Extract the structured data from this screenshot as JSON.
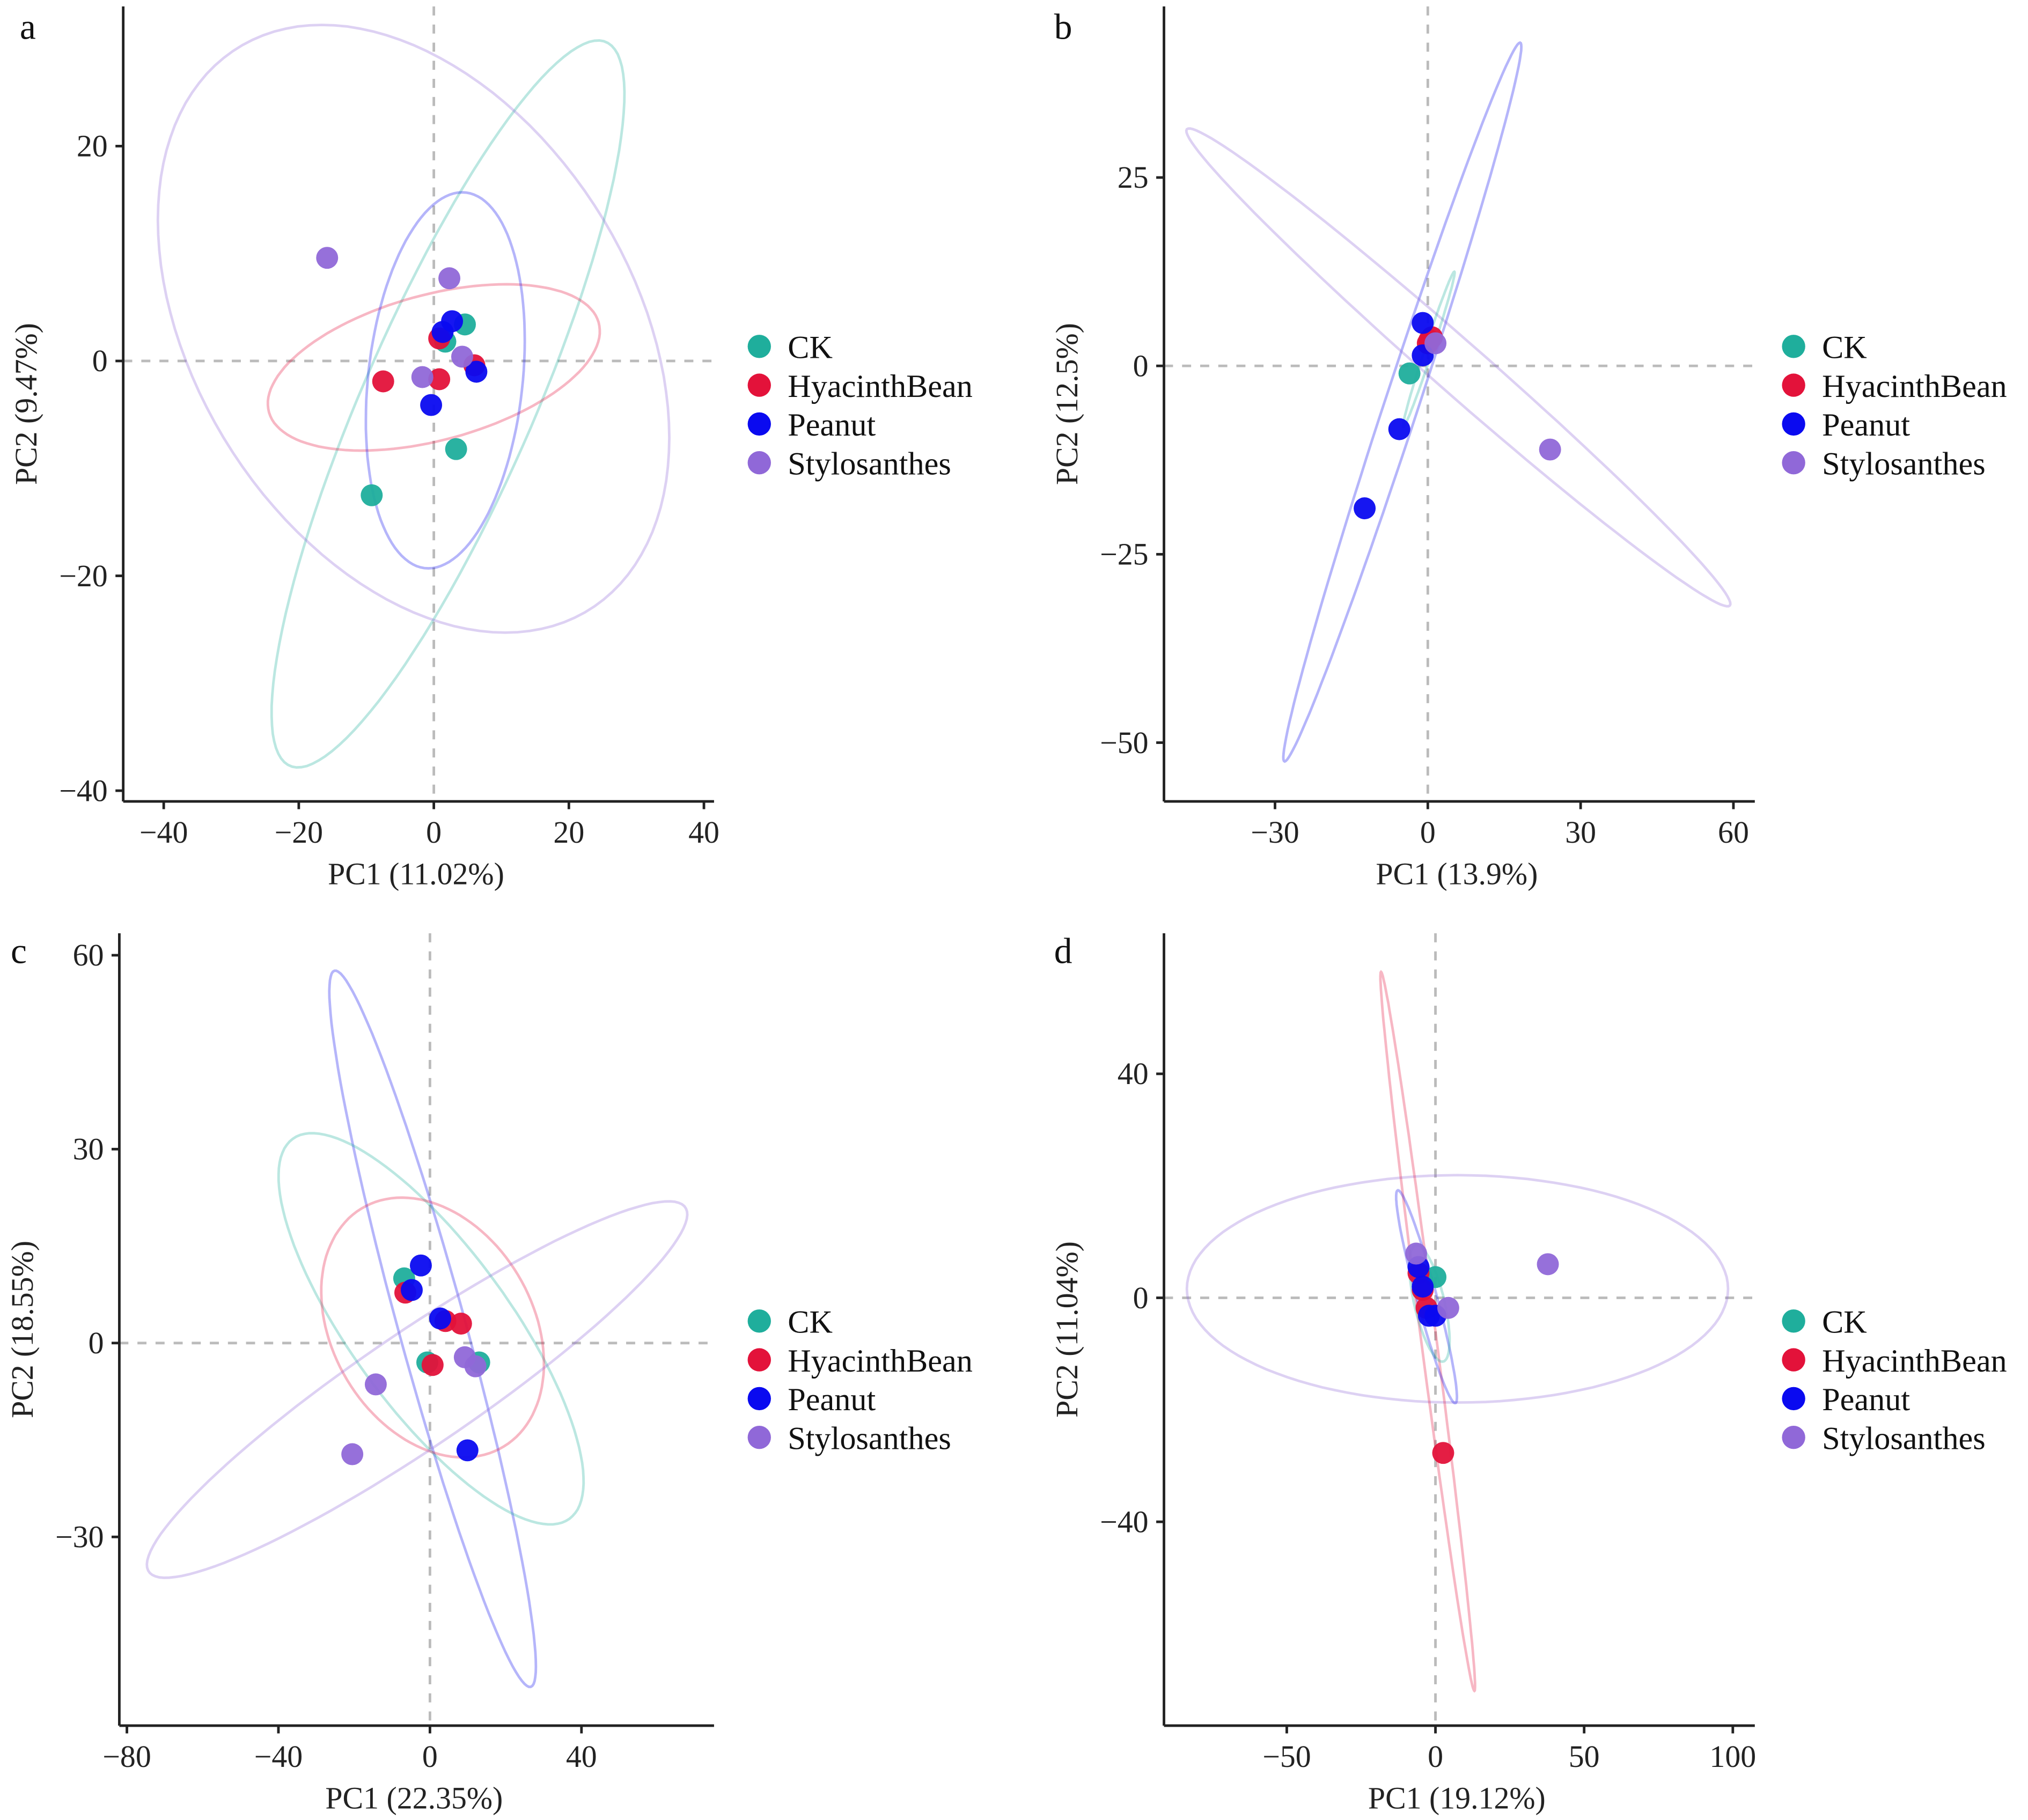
{
  "groups": [
    "CK",
    "HyacinthBean",
    "Peanut",
    "Stylosanthes"
  ],
  "colors": {
    "CK": "#1fae9c",
    "HyacinthBean": "#e3123a",
    "Peanut": "#0a0af0",
    "Stylosanthes": "#9068d8"
  },
  "chart_data": [
    {
      "panel": "a",
      "type": "scatter",
      "xlabel": "PC1 (11.02%)",
      "ylabel": "PC2 (9.47%)",
      "xlim": [
        -46,
        41.5
      ],
      "ylim": [
        -41,
        33
      ],
      "xticks": [
        -40,
        -20,
        0,
        20,
        40
      ],
      "yticks": [
        20,
        0,
        -20,
        -40
      ],
      "legend": "right",
      "grid": false,
      "points": {
        "CK": [
          [
            4.6,
            3.4
          ],
          [
            1.7,
            1.8
          ],
          [
            3.3,
            -8.2
          ],
          [
            -9.2,
            -12.5
          ]
        ],
        "HyacinthBean": [
          [
            -7.5,
            -1.9
          ],
          [
            0.8,
            2.1
          ],
          [
            6.0,
            -0.4
          ],
          [
            0.8,
            -1.7
          ]
        ],
        "Peanut": [
          [
            2.7,
            3.7
          ],
          [
            1.3,
            2.7
          ],
          [
            6.3,
            -1.0
          ],
          [
            -0.4,
            -4.1
          ]
        ],
        "Stylosanthes": [
          [
            -15.8,
            9.6
          ],
          [
            2.3,
            7.7
          ],
          [
            4.2,
            0.4
          ],
          [
            -1.7,
            -1.5
          ]
        ]
      },
      "ellipses": [
        {
          "group": "CK",
          "center": [
            2.1,
            -4
          ],
          "a": [
            23.7,
            33.6
          ],
          "b": [
            11,
            -4
          ]
        },
        {
          "group": "Stylosanthes",
          "center": [
            -3,
            3
          ],
          "a": [
            34.6,
            -20
          ],
          "b": [
            15.4,
            20
          ]
        },
        {
          "group": "HyacinthBean",
          "center": [
            0,
            -0.6
          ],
          "a": [
            24.4,
            4.2
          ],
          "b": [
            -3,
            6.5
          ]
        },
        {
          "group": "Peanut",
          "center": [
            1.7,
            -1.8
          ],
          "a": [
            2.5,
            17.5
          ],
          "b": [
            11.5,
            0
          ]
        }
      ]
    },
    {
      "panel": "b",
      "type": "scatter",
      "xlabel": "PC1 (13.9%)",
      "ylabel": "PC2 (12.5%)",
      "xlim": [
        -51.8,
        64.2
      ],
      "ylim": [
        -57.8,
        47.7
      ],
      "xticks": [
        -30,
        0,
        30,
        60
      ],
      "yticks": [
        25,
        0,
        -25,
        -50
      ],
      "legend": "right",
      "grid": false,
      "points": {
        "CK": [
          [
            -3.6,
            -1.0
          ]
        ],
        "HyacinthBean": [
          [
            0,
            3.0
          ],
          [
            0.8,
            3.8
          ],
          [
            0.3,
            3.4
          ]
        ],
        "Peanut": [
          [
            -1.0,
            5.7
          ],
          [
            -1.0,
            1.4
          ],
          [
            -5.6,
            -8.4
          ],
          [
            -12.4,
            -18.9
          ]
        ],
        "Stylosanthes": [
          [
            1.5,
            3.0
          ],
          [
            24.0,
            -11.1
          ]
        ]
      },
      "ellipses": [
        {
          "group": "Peanut",
          "center": [
            -5,
            -4.8
          ],
          "a": [
            23.1,
            47.7
          ],
          "b": [
            3.5,
            0
          ]
        },
        {
          "group": "Stylosanthes",
          "center": [
            6,
            -0.2
          ],
          "a": [
            53.3,
            -31.6
          ],
          "b": [
            3.3,
            2.6
          ]
        },
        {
          "group": "CK",
          "center": [
            0.2,
            2.2
          ],
          "a": [
            5,
            10.3
          ],
          "b": [
            0.8,
            0
          ]
        }
      ]
    },
    {
      "panel": "c",
      "type": "scatter",
      "xlabel": "PC1 (22.35%)",
      "ylabel": "PC2 (18.55%)",
      "xlim": [
        -82,
        75
      ],
      "ylim": [
        -59.2,
        63.4
      ],
      "xticks": [
        -80,
        -40,
        0,
        40
      ],
      "yticks": [
        60,
        30,
        0,
        -30
      ],
      "legend": "right",
      "grid": false,
      "points": {
        "CK": [
          [
            -6.8,
            10.0
          ],
          [
            -0.7,
            -3.0
          ],
          [
            13.0,
            -3.0
          ]
        ],
        "HyacinthBean": [
          [
            -6.5,
            7.8
          ],
          [
            4.1,
            3.4
          ],
          [
            8.2,
            3.0
          ],
          [
            0.7,
            -3.4
          ]
        ],
        "Peanut": [
          [
            -2.4,
            12.0
          ],
          [
            -4.8,
            8.2
          ],
          [
            2.7,
            3.8
          ],
          [
            9.9,
            -16.6
          ]
        ],
        "Stylosanthes": [
          [
            -14.3,
            -6.4
          ],
          [
            -20.5,
            -17.2
          ],
          [
            9.2,
            -2.2
          ],
          [
            12.0,
            -3.6
          ]
        ]
      },
      "ellipses": [
        {
          "group": "Peanut",
          "center": [
            0.7,
            2.2
          ],
          "a": [
            25.9,
            -55.4
          ],
          "b": [
            8.5,
            1.4
          ]
        },
        {
          "group": "CK",
          "center": [
            0.3,
            2.2
          ],
          "a": [
            36.5,
            -29.4
          ],
          "b": [
            17,
            7.2
          ]
        },
        {
          "group": "HyacinthBean",
          "center": [
            0.7,
            2.4
          ],
          "a": [
            10.9,
            -20
          ],
          "b": [
            27.3,
            2
          ]
        },
        {
          "group": "Stylosanthes",
          "center": [
            -3.4,
            -7.2
          ],
          "a": [
            71,
            28
          ],
          "b": [
            6.8,
            -8
          ]
        }
      ]
    },
    {
      "panel": "d",
      "type": "scatter",
      "xlabel": "PC1 (19.12%)",
      "ylabel": "PC2 (11.04%)",
      "xlim": [
        -91.3,
        107.4
      ],
      "ylim": [
        -76.4,
        65.1
      ],
      "xticks": [
        -50,
        0,
        50,
        100
      ],
      "yticks": [
        40,
        0,
        -40
      ],
      "legend": "right",
      "grid": false,
      "points": {
        "CK": [
          [
            0,
            3.7
          ]
        ],
        "HyacinthBean": [
          [
            -5.7,
            4.4
          ],
          [
            -4.3,
            1.4
          ],
          [
            -3.0,
            -1.8
          ],
          [
            2.6,
            -27.7
          ]
        ],
        "Peanut": [
          [
            -5.7,
            5.5
          ],
          [
            -4.3,
            2.0
          ],
          [
            -2.2,
            -3.2
          ],
          [
            0,
            -3.2
          ]
        ],
        "Stylosanthes": [
          [
            37.8,
            6.0
          ],
          [
            -6.5,
            7.9
          ],
          [
            4.3,
            -1.8
          ]
        ]
      },
      "ellipses": [
        {
          "group": "Stylosanthes",
          "center": [
            7.4,
            1.6
          ],
          "a": [
            91,
            0
          ],
          "b": [
            0,
            20.3
          ]
        },
        {
          "group": "HyacinthBean",
          "center": [
            -2.6,
            -6
          ],
          "a": [
            15.7,
            -64.2
          ],
          "b": [
            2.6,
            0
          ]
        },
        {
          "group": "Peanut",
          "center": [
            -3,
            0.2
          ],
          "a": [
            9.6,
            -19
          ],
          "b": [
            3.5,
            0
          ]
        },
        {
          "group": "CK",
          "center": [
            -2,
            -1
          ],
          "a": [
            4.3,
            -10.4
          ],
          "b": [
            5.2,
            0
          ]
        }
      ]
    }
  ]
}
